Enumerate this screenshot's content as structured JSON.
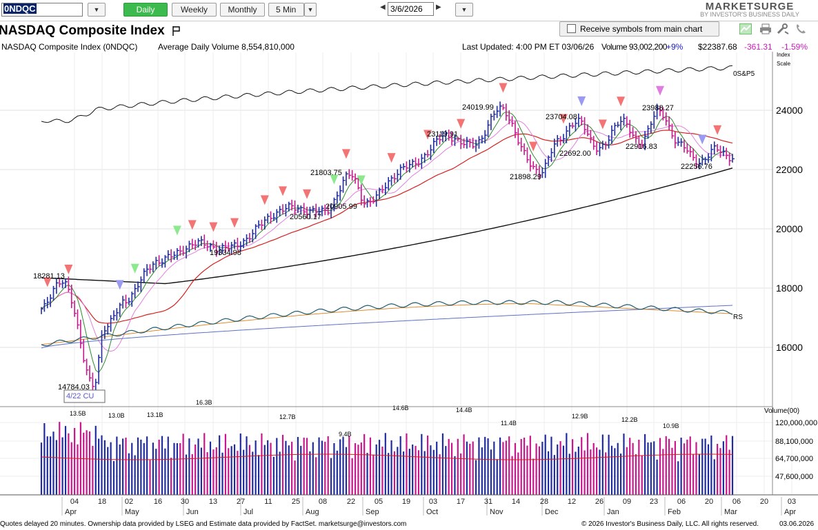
{
  "toolbar": {
    "symbol": "0NDQC",
    "periods": [
      "Daily",
      "Weekly",
      "Monthly",
      "5 Min"
    ],
    "active_period": "Daily",
    "date": "3/6/2026",
    "logo_top": "MARKETSURGE",
    "logo_bottom": "BY INVESTOR'S BUSINESS DAILY"
  },
  "header": {
    "title": "NASDAQ Composite Index",
    "receive_symbols_label": "Receive symbols from main chart",
    "name_symbol": "NASDAQ Composite Index   (0NDQC)",
    "avg_volume": "Average Daily Volume 8,554,810,000",
    "last_updated": "Last Updated: 4:00 PM ET 03/06/26",
    "volume": "Volume 93,002,200",
    "volume_change": "+9%",
    "price": "$22387.68",
    "change": "-361.31",
    "change_pct": "-1.59%"
  },
  "colors": {
    "up": "#1f2b9e",
    "down": "#c8168c",
    "ma10": "#2d8a2d",
    "ma21": "#e27ee0",
    "ma50": "#d42020",
    "ma200": "#111111",
    "rs": "#1e5a6e",
    "volume_avg": "#cc2222",
    "positive": "#1a1acc",
    "negative": "#c91ab8"
  },
  "chart_data": {
    "type": "line",
    "price_axis": {
      "ticks": [
        24000,
        22000,
        20000,
        18000,
        16000
      ],
      "tick_labels": [
        "24000",
        "22000",
        "20000",
        "18000",
        "16000"
      ],
      "scale_label_1": "Index",
      "scale_label_2": "Scale"
    },
    "x_axis": {
      "day_labels": [
        "04",
        "18",
        "02",
        "16",
        "30",
        "13",
        "27",
        "11",
        "25",
        "08",
        "22",
        "05",
        "19",
        "03",
        "17",
        "31",
        "14",
        "28",
        "12",
        "26",
        "09",
        "23",
        "06",
        "20",
        "06",
        "20",
        "03"
      ],
      "month_labels": [
        "Apr",
        "May",
        "Jun",
        "Jul",
        "Aug",
        "Sep",
        "Oct",
        "Nov",
        "Dec",
        "Jan",
        "Feb",
        "Mar",
        "Apr"
      ]
    },
    "annotations": [
      {
        "label": "18281.13",
        "price": 18281
      },
      {
        "label": "14784.03",
        "price": 14784
      },
      {
        "label": "19334.98",
        "price": 19335
      },
      {
        "label": "20560.17",
        "price": 20560
      },
      {
        "label": "21803.75",
        "price": 21804
      },
      {
        "label": "20905.99",
        "price": 20906
      },
      {
        "label": "23119.91",
        "price": 23120
      },
      {
        "label": "24019.99",
        "price": 24020
      },
      {
        "label": "21898.29",
        "price": 21898
      },
      {
        "label": "23704.08",
        "price": 23704
      },
      {
        "label": "22692.00",
        "price": 22692
      },
      {
        "label": "23988.27",
        "price": 23988
      },
      {
        "label": "22916.83",
        "price": 22917
      },
      {
        "label": "22256.76",
        "price": 22257
      }
    ],
    "event_label": "4/22 CU",
    "sp5_label": "0S&P5",
    "rs_label": "RS",
    "volume_axis": {
      "title": "Volume(00)",
      "tick_labels": [
        "120,000,000",
        "88,100,000",
        "64,700,000",
        "47,600,000"
      ]
    },
    "volume_labels": [
      "13.5B",
      "13.0B",
      "13.1B",
      "16.3B",
      "12.7B",
      "9.4B",
      "14.6B",
      "14.4B",
      "11.4B",
      "12.9B",
      "12.2B",
      "10.9B"
    ]
  },
  "footer": {
    "left": "Quotes delayed 20 minutes. Ownership data provided by LSEG and Estimate data provided by FactSet. marketsurge@investors.com",
    "right": "© 2026 Investor's Business Daily, LLC. All rights reserved.",
    "date": "03.06.2026"
  }
}
